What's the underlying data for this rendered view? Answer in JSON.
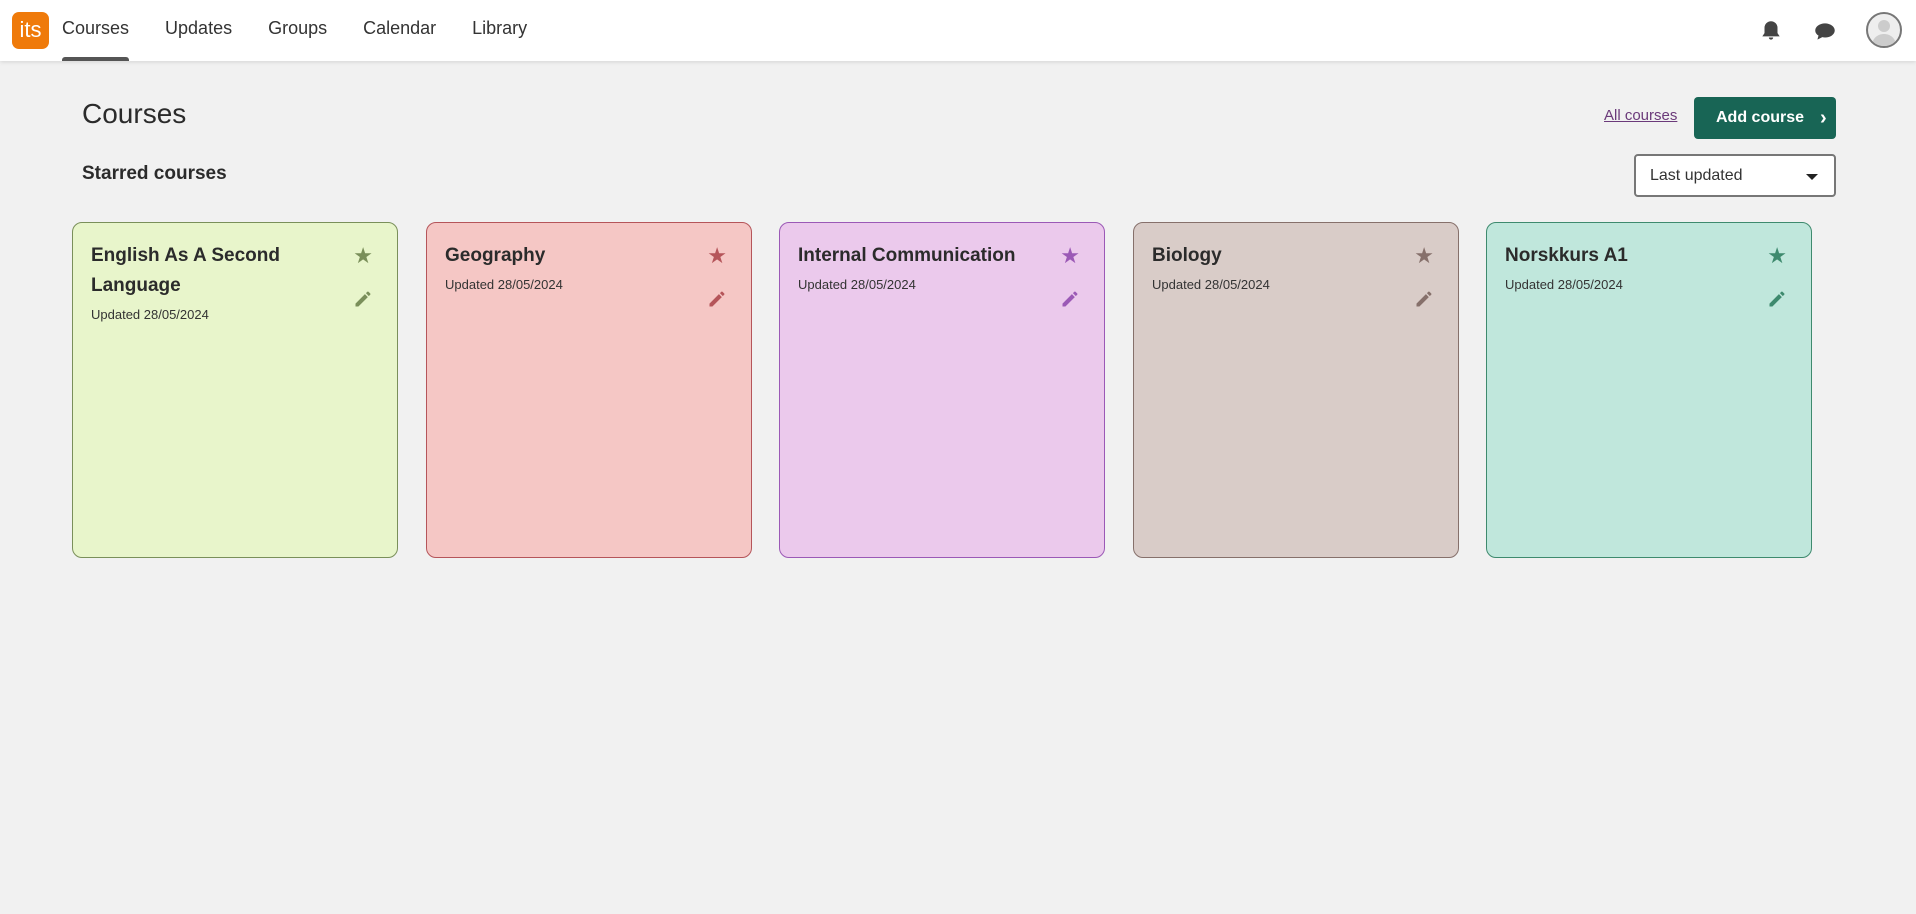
{
  "header": {
    "logo": "its",
    "nav": [
      "Courses",
      "Updates",
      "Groups",
      "Calendar",
      "Library"
    ],
    "active": "Courses"
  },
  "page": {
    "title": "Courses",
    "subtitle": "Starred courses",
    "all_courses": "All courses",
    "add_course": "Add course",
    "sort_value": "Last updated"
  },
  "courses": [
    {
      "title": "English As A Second Language",
      "updated": "Updated 28/05/2024",
      "bg": "#e8f5cb",
      "accent": "#7a8f5a"
    },
    {
      "title": "Geography",
      "updated": "Updated 28/05/2024",
      "bg": "#f5c7c5",
      "accent": "#b5555a"
    },
    {
      "title": "Internal Communication",
      "updated": "Updated 28/05/2024",
      "bg": "#ebc9ec",
      "accent": "#9b59b6"
    },
    {
      "title": "Biology",
      "updated": "Updated 28/05/2024",
      "bg": "#d9ccc8",
      "accent": "#86706b"
    },
    {
      "title": "Norskkurs A1",
      "updated": "Updated 28/05/2024",
      "bg": "#c0e7dc",
      "accent": "#3e8a6e"
    }
  ]
}
